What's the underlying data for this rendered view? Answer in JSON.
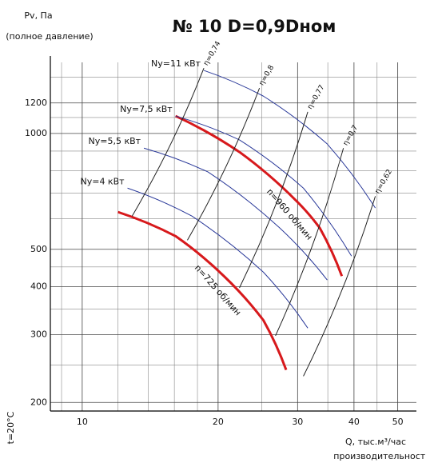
{
  "chart_data": {
    "type": "line",
    "title": "№ 10 D=0,9Dном",
    "y_label": "Pv, Па",
    "y_label_note": "(полное давление)",
    "x_label": "Q, тыс.м³/час",
    "x_label_note": "производительность",
    "temperature": "t=20°C",
    "log_x": true,
    "log_y": true,
    "grid": true,
    "xlim": [
      8.5,
      55
    ],
    "ylim": [
      190,
      1530
    ],
    "xticks": [
      10,
      20,
      30,
      40,
      50
    ],
    "yticks": [
      200,
      300,
      400,
      500,
      1000,
      1200
    ],
    "x_minor_grid": [
      9,
      12,
      14,
      16,
      18,
      25,
      35,
      45
    ],
    "y_minor_grid": [
      250,
      350,
      450,
      600,
      700,
      800,
      900,
      1100,
      1400
    ],
    "series": [
      {
        "name": "n=960 об/мин",
        "color": "#d7191c",
        "x": [
          16.1,
          22.3,
          29.7,
          33.6,
          37.6
        ],
        "values": [
          1110,
          895,
          671,
          568,
          426
        ]
      },
      {
        "name": "n=725 об/мин",
        "color": "#d7191c",
        "x": [
          12.0,
          16.1,
          20.6,
          25.2,
          28.3
        ],
        "values": [
          625,
          541,
          426,
          327,
          243
        ]
      },
      {
        "name": "Nу=11 кВт",
        "color": "#2b3a9a",
        "x": [
          18.6,
          25.2,
          34.9,
          44.6
        ],
        "values": [
          1458,
          1250,
          939,
          640
        ]
      },
      {
        "name": "Nу=7,5 кВт",
        "color": "#2b3a9a",
        "x": [
          16.1,
          22.3,
          30.9,
          39.5
        ],
        "values": [
          1110,
          962,
          721,
          480
        ]
      },
      {
        "name": "Nу=5,5 кВт",
        "color": "#2b3a9a",
        "x": [
          13.7,
          19.0,
          27.4,
          34.9
        ],
        "values": [
          916,
          794,
          568,
          416
        ]
      },
      {
        "name": "Nу=4 кВт",
        "color": "#2b3a9a",
        "x": [
          12.6,
          17.5,
          25.2,
          31.6
        ],
        "values": [
          721,
          610,
          436,
          312
        ]
      },
      {
        "name": "η=0,74",
        "color": "#222222",
        "x": [
          18.6,
          12.9
        ],
        "values": [
          1478,
          610
        ]
      },
      {
        "name": "η=0,8",
        "color": "#222222",
        "x": [
          24.7,
          17.1
        ],
        "values": [
          1312,
          528
        ]
      },
      {
        "name": "η=0,77",
        "color": "#222222",
        "x": [
          31.6,
          22.3
        ],
        "values": [
          1138,
          397
        ]
      },
      {
        "name": "η=0,7",
        "color": "#222222",
        "x": [
          37.9,
          26.8
        ],
        "values": [
          916,
          298
        ]
      },
      {
        "name": "η=0,62",
        "color": "#222222",
        "x": [
          44.6,
          30.9
        ],
        "values": [
          687,
          234
        ]
      }
    ]
  }
}
